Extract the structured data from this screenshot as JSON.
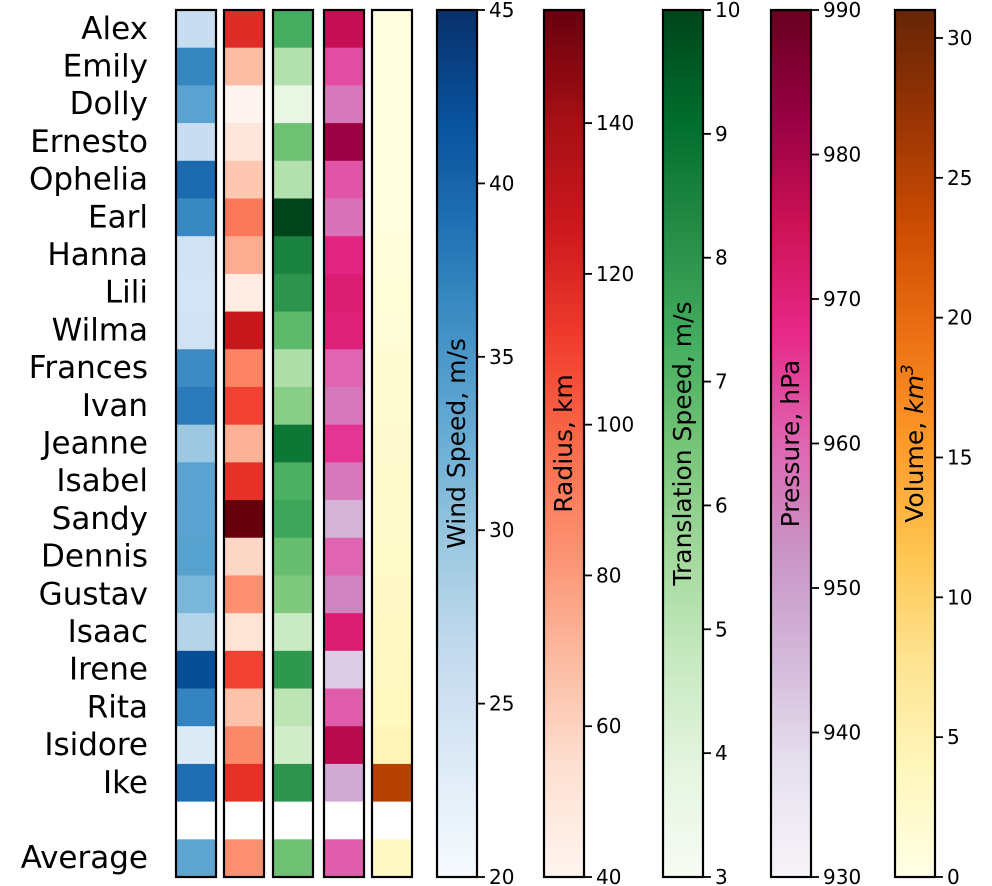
{
  "chart_data": {
    "type": "heatmap",
    "rows": [
      "Alex",
      "Emily",
      "Dolly",
      "Ernesto",
      "Ophelia",
      "Earl",
      "Hanna",
      "Lili",
      "Wilma",
      "Frances",
      "Ivan",
      "Jeanne",
      "Isabel",
      "Sandy",
      "Dennis",
      "Gustav",
      "Isaac",
      "Irene",
      "Rita",
      "Isidore",
      "Ike",
      "",
      "Average"
    ],
    "columns": [
      {
        "key": "wind",
        "label": "Wind Speed, m/s",
        "label_html": "Wind Speed, m/s",
        "cmap": "Blues",
        "range": [
          20,
          45
        ],
        "ticks": [
          20,
          25,
          30,
          35,
          40,
          45
        ],
        "values": [
          25.8,
          36.8,
          33.8,
          25.8,
          39.5,
          36.6,
          24.8,
          24.4,
          24.8,
          36.2,
          37.8,
          29.5,
          33.8,
          33.8,
          34.0,
          31.5,
          27.5,
          42.2,
          37.0,
          23.2,
          39.0,
          null,
          33.5
        ]
      },
      {
        "key": "radius",
        "label": "Radius, km",
        "label_html": "Radius, km",
        "cmap": "Reds",
        "range": [
          40,
          155
        ],
        "ticks": [
          40,
          60,
          80,
          100,
          120,
          140
        ],
        "values": [
          118,
          68,
          40,
          50,
          64,
          92,
          74,
          46,
          128,
          88,
          110,
          72,
          116,
          155,
          58,
          84,
          52,
          110,
          66,
          86,
          116,
          null,
          84
        ]
      },
      {
        "key": "translation",
        "label": "Translation Speed, m/s",
        "label_html": "Translation Speed, m/s",
        "cmap": "Greens",
        "range": [
          3,
          10
        ],
        "ticks": [
          3,
          4,
          5,
          6,
          7,
          8,
          9,
          10
        ],
        "values": [
          7.3,
          5.2,
          3.7,
          6.6,
          5.2,
          10.0,
          8.5,
          8.0,
          6.9,
          5.3,
          6.1,
          8.8,
          7.2,
          7.5,
          6.7,
          6.3,
          4.7,
          7.9,
          5.0,
          4.5,
          8.0,
          null,
          6.6
        ]
      },
      {
        "key": "pressure",
        "label": "Pressure, hPa",
        "label_html": "Pressure, hPa",
        "cmap": "PuRd",
        "range": [
          930,
          990
        ],
        "ticks": [
          930,
          940,
          950,
          960,
          970,
          980,
          990
        ],
        "values": [
          976,
          963,
          957,
          982,
          962,
          958,
          969,
          971,
          970,
          960,
          957,
          966,
          957,
          946,
          960,
          955,
          971,
          941,
          961,
          978,
          948,
          null,
          961
        ]
      },
      {
        "key": "volume",
        "label": "Volume, km³",
        "label_html": "Volume, <tspan font-style='italic'>km</tspan><tspan baseline-shift='super' font-size='17' font-style='italic'>3</tspan>",
        "cmap": "YlOrBr",
        "range": [
          0,
          31
        ],
        "ticks": [
          0,
          5,
          10,
          15,
          20,
          25,
          30
        ],
        "values": [
          0.5,
          0.5,
          0.5,
          0.5,
          0.5,
          0.6,
          1.0,
          1.2,
          1.4,
          1.6,
          1.8,
          2.0,
          2.2,
          2.4,
          2.6,
          2.8,
          3.0,
          3.3,
          3.6,
          4.2,
          25.0,
          null,
          3.0
        ]
      }
    ],
    "colormaps": {
      "Blues": [
        "#f7fbff",
        "#deebf7",
        "#c6dbef",
        "#9ecae1",
        "#6baed6",
        "#4292c6",
        "#2171b5",
        "#08519c",
        "#08306b"
      ],
      "Reds": [
        "#fff5f0",
        "#fee0d2",
        "#fcbba1",
        "#fc9272",
        "#fb6a4a",
        "#ef3b2c",
        "#cb181d",
        "#a50f15",
        "#67000d"
      ],
      "Greens": [
        "#f7fcf5",
        "#e5f5e0",
        "#c7e9c0",
        "#a1d99b",
        "#74c476",
        "#41ab5d",
        "#238b45",
        "#006d2c",
        "#00441b"
      ],
      "PuRd": [
        "#f7f4f9",
        "#e7e1ef",
        "#d4b9da",
        "#c994c7",
        "#df65b0",
        "#e7298a",
        "#ce1256",
        "#980043",
        "#67001f"
      ],
      "YlOrBr": [
        "#ffffe5",
        "#fff7bc",
        "#fee391",
        "#fec44f",
        "#fe9929",
        "#ec7014",
        "#cc4c02",
        "#993404",
        "#662506"
      ]
    }
  }
}
